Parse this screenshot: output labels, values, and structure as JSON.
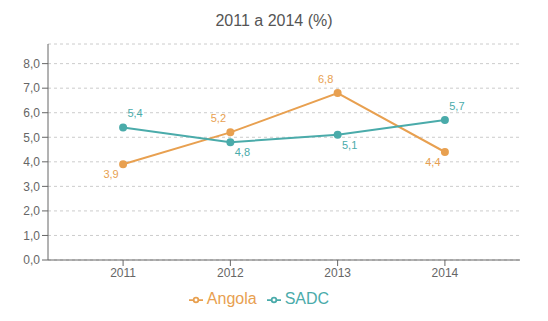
{
  "chart_data": {
    "type": "line",
    "title": "2011 a 2014 (%)",
    "x": [
      2011,
      2012,
      2013,
      2014
    ],
    "xlim": [
      2010.3,
      2014.7
    ],
    "xticks": [
      2011,
      2012,
      2013,
      2014
    ],
    "ylim": [
      0.0,
      8.8
    ],
    "yticks": [
      {
        "value": 0.0,
        "label": "0,0"
      },
      {
        "value": 1.0,
        "label": "1,0"
      },
      {
        "value": 2.0,
        "label": "2,0"
      },
      {
        "value": 3.0,
        "label": "3,0"
      },
      {
        "value": 4.0,
        "label": "4,0"
      },
      {
        "value": 5.0,
        "label": "5,0"
      },
      {
        "value": 6.0,
        "label": "6,0"
      },
      {
        "value": 7.0,
        "label": "7,0"
      },
      {
        "value": 8.0,
        "label": "8,0"
      }
    ],
    "grid": true,
    "legend": "bottom",
    "data_labels": true,
    "series": [
      {
        "name": "Angola",
        "color": "#E8A050",
        "marker": "circle",
        "values": [
          3.9,
          5.2,
          6.8,
          4.4
        ],
        "value_labels": [
          "3,9",
          "5,2",
          "6,8",
          "4,4"
        ]
      },
      {
        "name": "SADC",
        "color": "#4AABAA",
        "marker": "circle",
        "values": [
          5.4,
          4.8,
          5.1,
          5.7
        ],
        "value_labels": [
          "5,4",
          "4,8",
          "5,1",
          "5,7"
        ]
      }
    ]
  }
}
